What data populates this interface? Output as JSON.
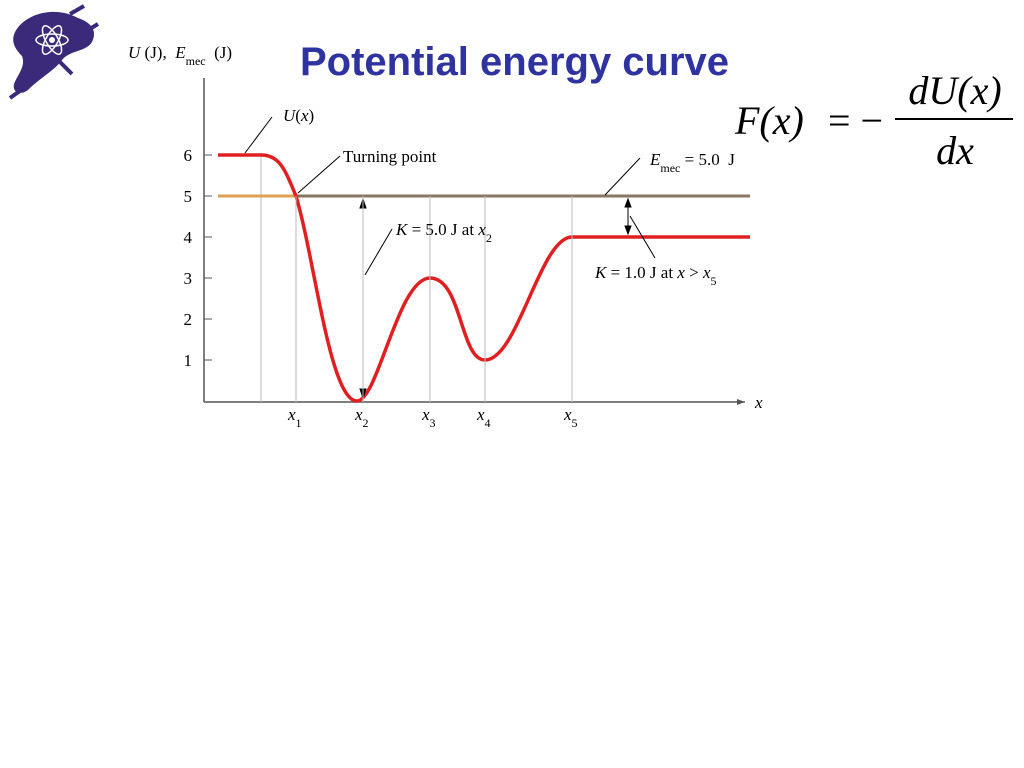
{
  "title": "Potential energy curve",
  "equation": {
    "lhs": "F(x)",
    "sign": "= −",
    "numerator": "dU(x)",
    "denominator": "dx"
  },
  "figure": {
    "y_label": [
      {
        "t": "U",
        "italic": true
      },
      {
        "t": " (J),  "
      },
      {
        "t": "E",
        "italic": true
      },
      {
        "t": "mec",
        "sub": true
      },
      {
        "t": "  (J)"
      }
    ],
    "y_ticks": [
      "1",
      "2",
      "3",
      "4",
      "5",
      "6"
    ],
    "x_label": "x",
    "x_ticks": [
      [
        {
          "t": "x",
          "italic": true
        },
        {
          "t": "1",
          "sub": true
        }
      ],
      [
        {
          "t": "x",
          "italic": true
        },
        {
          "t": "2",
          "sub": true
        }
      ],
      [
        {
          "t": "x",
          "italic": true
        },
        {
          "t": "3",
          "sub": true
        }
      ],
      [
        {
          "t": "x",
          "italic": true
        },
        {
          "t": "4",
          "sub": true
        }
      ],
      [
        {
          "t": "x",
          "italic": true
        },
        {
          "t": "5",
          "sub": true
        }
      ]
    ],
    "annotations": {
      "u_curve": [
        {
          "t": "U",
          "italic": true
        },
        {
          "t": "("
        },
        {
          "t": "x",
          "italic": true
        },
        {
          "t": ")"
        }
      ],
      "turning_point": [
        {
          "t": "Turning point"
        }
      ],
      "e_mec": [
        {
          "t": "E",
          "italic": true
        },
        {
          "t": "mec",
          "sub": true
        },
        {
          "t": " = 5.0  J"
        }
      ],
      "k_x2": [
        {
          "t": "K",
          "italic": true
        },
        {
          "t": " = 5.0 J at "
        },
        {
          "t": "x",
          "italic": true
        },
        {
          "t": "2",
          "sub": true
        }
      ],
      "k_x5": [
        {
          "t": "K",
          "italic": true
        },
        {
          "t": " = 1.0 J at "
        },
        {
          "t": "x",
          "italic": true
        },
        {
          "t": " > "
        },
        {
          "t": "x",
          "italic": true
        },
        {
          "t": "5",
          "sub": true
        }
      ]
    }
  }
}
